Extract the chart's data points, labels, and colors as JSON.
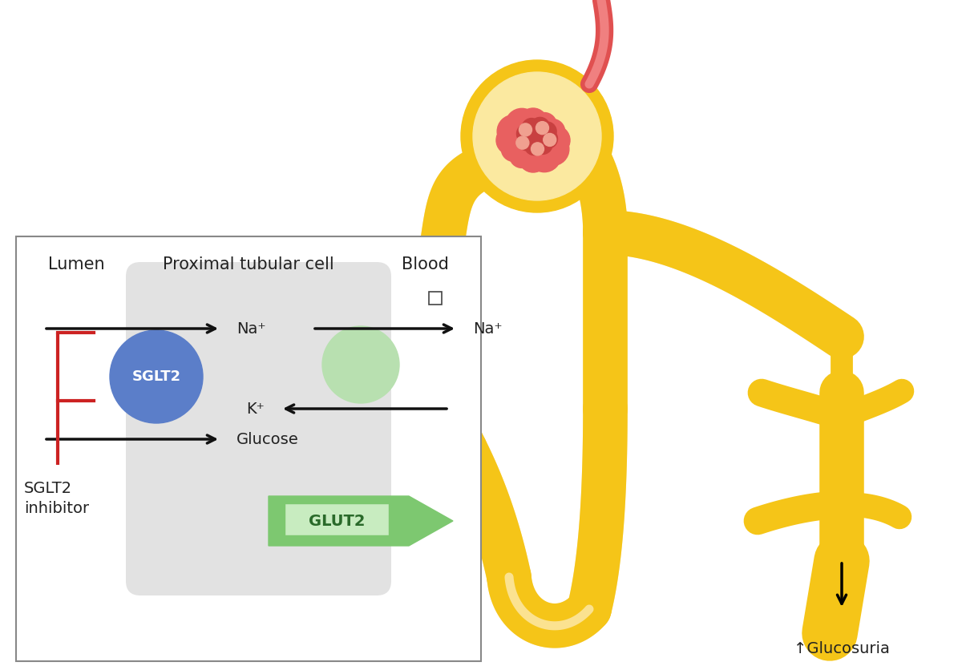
{
  "bg_color": "#ffffff",
  "tubule_color": "#F5C518",
  "tubule_shadow": "#E8A800",
  "glom_outer_color": "#F5C518",
  "glom_cap_color": "#FAE8B0",
  "glom_vessel_color": "#E86060",
  "blood_vessel_color": "#E05050",
  "cell_bg": "#E2E2E2",
  "sglt2_color": "#5B7EC9",
  "sglt2_text": "#ffffff",
  "glut2_fill": "#7DC870",
  "glut2_text": "#2a6a2a",
  "glut2_label_bg": "#c8ecc0",
  "pump_circle_color": "#b8e0b0",
  "inhibitor_color": "#CC2222",
  "arrow_color": "#111111",
  "box_border": "#888888",
  "text_color": "#222222",
  "lumen_label": "Lumen",
  "cell_label": "Proximal tubular cell",
  "blood_label": "Blood",
  "sglt2_label": "SGLT2",
  "glut2_label": "GLUT2",
  "na_label1": "Na⁺",
  "k_label": "K⁺",
  "glucose_label": "Glucose",
  "na_label2": "Na⁺",
  "inhibitor_label1": "SGLT2",
  "inhibitor_label2": "inhibitor",
  "glucosuria_label": "↑Glucosuria"
}
